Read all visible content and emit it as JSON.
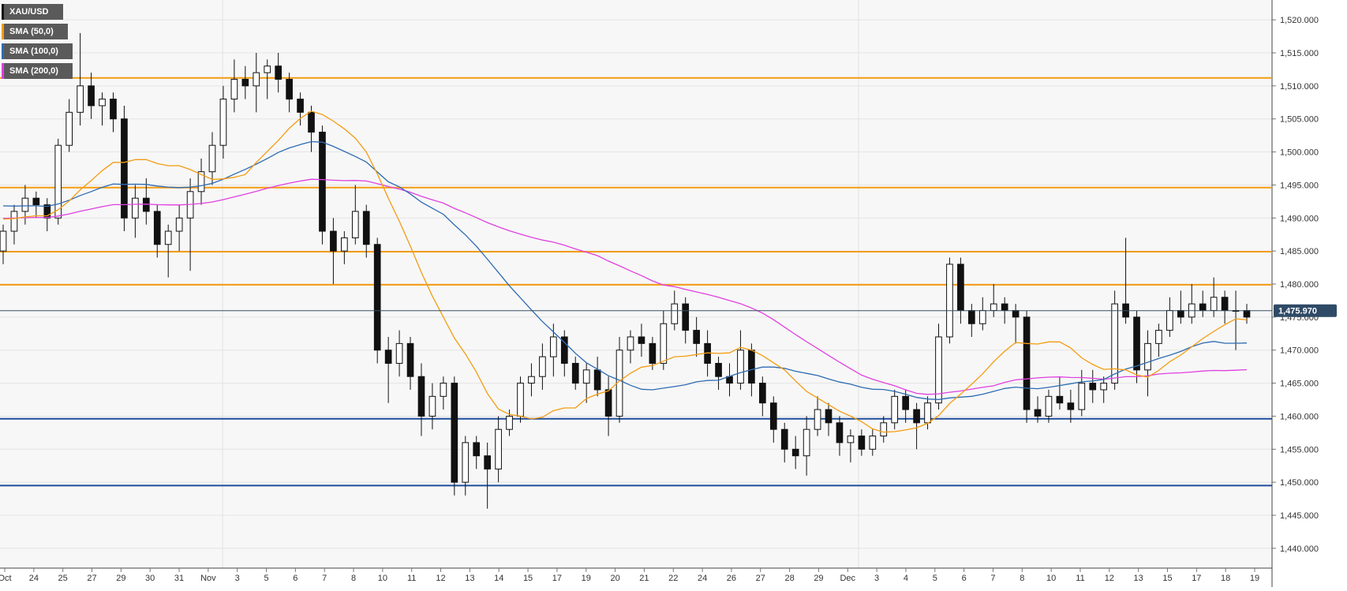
{
  "chart_data": {
    "type": "candlestick",
    "symbol": "XAU/USD",
    "legend": [
      {
        "name": "XAU/USD",
        "color": "#000000"
      },
      {
        "name": "SMA (50,0)",
        "color": "#f39c12"
      },
      {
        "name": "SMA (100,0)",
        "color": "#2e6bb2"
      },
      {
        "name": "SMA (200,0)",
        "color": "#e040e0"
      }
    ],
    "ylim": [
      1437,
      1523
    ],
    "y_ticks": [
      "1,440.000",
      "1,445.000",
      "1,450.000",
      "1,455.000",
      "1,460.000",
      "1,465.000",
      "1,470.000",
      "1,475.000",
      "1,480.000",
      "1,485.000",
      "1,490.000",
      "1,495.000",
      "1,500.000",
      "1,505.000",
      "1,510.000",
      "1,515.000",
      "1,520.000"
    ],
    "y_tick_values": [
      1440,
      1445,
      1450,
      1455,
      1460,
      1465,
      1470,
      1475,
      1480,
      1485,
      1490,
      1495,
      1500,
      1505,
      1510,
      1515,
      1520
    ],
    "x_labels": [
      "Oct",
      "24",
      "25",
      "27",
      "29",
      "30",
      "31",
      "Nov",
      "3",
      "5",
      "6",
      "7",
      "8",
      "10",
      "11",
      "12",
      "13",
      "14",
      "15",
      "17",
      "19",
      "20",
      "21",
      "22",
      "24",
      "26",
      "27",
      "28",
      "29",
      "Dec",
      "3",
      "4",
      "5",
      "6",
      "7",
      "8",
      "10",
      "11",
      "12",
      "13",
      "15",
      "17",
      "18",
      "19"
    ],
    "last_price": "1,475.970",
    "last_price_value": 1475.97,
    "resistance_levels": [
      1511.2,
      1494.6,
      1484.9,
      1479.9
    ],
    "support_levels": [
      1459.6,
      1449.5
    ],
    "resistance_color": "#f39c12",
    "support_color": "#1f4e9c",
    "candles": [
      [
        1485,
        1489,
        1483,
        1488
      ],
      [
        1488,
        1492,
        1486,
        1491
      ],
      [
        1491,
        1495,
        1489,
        1493
      ],
      [
        1493,
        1494,
        1490,
        1492
      ],
      [
        1492,
        1493,
        1488,
        1490
      ],
      [
        1490,
        1502,
        1489,
        1501
      ],
      [
        1501,
        1508,
        1500,
        1506
      ],
      [
        1506,
        1518,
        1504,
        1510
      ],
      [
        1510,
        1512,
        1505,
        1507
      ],
      [
        1507,
        1509,
        1504,
        1508
      ],
      [
        1508,
        1509,
        1503,
        1505
      ],
      [
        1505,
        1507,
        1488,
        1490
      ],
      [
        1490,
        1495,
        1487,
        1493
      ],
      [
        1493,
        1496,
        1489,
        1491
      ],
      [
        1491,
        1492,
        1484,
        1486
      ],
      [
        1486,
        1489,
        1481,
        1488
      ],
      [
        1488,
        1492,
        1485,
        1490
      ],
      [
        1490,
        1496,
        1482,
        1494
      ],
      [
        1494,
        1499,
        1492,
        1497
      ],
      [
        1497,
        1503,
        1495,
        1501
      ],
      [
        1501,
        1510,
        1499,
        1508
      ],
      [
        1508,
        1514,
        1506,
        1511
      ],
      [
        1511,
        1513,
        1508,
        1510
      ],
      [
        1510,
        1515,
        1506,
        1512
      ],
      [
        1512,
        1514,
        1508,
        1513
      ],
      [
        1513,
        1515,
        1509,
        1511
      ],
      [
        1511,
        1512,
        1506,
        1508
      ],
      [
        1508,
        1509,
        1504,
        1506
      ],
      [
        1506,
        1507,
        1500,
        1503
      ],
      [
        1503,
        1504,
        1486,
        1488
      ],
      [
        1488,
        1490,
        1480,
        1485
      ],
      [
        1485,
        1488,
        1483,
        1487
      ],
      [
        1487,
        1495,
        1486,
        1491
      ],
      [
        1491,
        1492,
        1484,
        1486
      ],
      [
        1486,
        1487,
        1468,
        1470
      ],
      [
        1470,
        1472,
        1462,
        1468
      ],
      [
        1468,
        1473,
        1466,
        1471
      ],
      [
        1471,
        1472,
        1464,
        1466
      ],
      [
        1466,
        1468,
        1457,
        1460
      ],
      [
        1460,
        1465,
        1458,
        1463
      ],
      [
        1463,
        1466,
        1461,
        1465
      ],
      [
        1465,
        1466,
        1448,
        1450
      ],
      [
        1450,
        1457,
        1448,
        1456
      ],
      [
        1456,
        1457,
        1452,
        1454
      ],
      [
        1454,
        1456,
        1446,
        1452
      ],
      [
        1452,
        1460,
        1450,
        1458
      ],
      [
        1458,
        1461,
        1457,
        1460
      ],
      [
        1460,
        1466,
        1459,
        1465
      ],
      [
        1465,
        1468,
        1463,
        1466
      ],
      [
        1466,
        1471,
        1464,
        1469
      ],
      [
        1469,
        1474,
        1466,
        1472
      ],
      [
        1472,
        1473,
        1466,
        1468
      ],
      [
        1468,
        1469,
        1464,
        1465
      ],
      [
        1465,
        1468,
        1462,
        1467
      ],
      [
        1467,
        1469,
        1463,
        1464
      ],
      [
        1464,
        1466,
        1457,
        1460
      ],
      [
        1460,
        1472,
        1459,
        1470
      ],
      [
        1470,
        1473,
        1468,
        1472
      ],
      [
        1472,
        1474,
        1469,
        1471
      ],
      [
        1471,
        1472,
        1467,
        1468
      ],
      [
        1468,
        1476,
        1467,
        1474
      ],
      [
        1474,
        1479,
        1473,
        1477
      ],
      [
        1477,
        1478,
        1471,
        1473
      ],
      [
        1473,
        1475,
        1469,
        1471
      ],
      [
        1471,
        1473,
        1466,
        1468
      ],
      [
        1468,
        1469,
        1464,
        1466
      ],
      [
        1466,
        1468,
        1463,
        1465
      ],
      [
        1465,
        1473,
        1464,
        1470
      ],
      [
        1470,
        1471,
        1463,
        1465
      ],
      [
        1465,
        1466,
        1460,
        1462
      ],
      [
        1462,
        1463,
        1456,
        1458
      ],
      [
        1458,
        1459,
        1453,
        1455
      ],
      [
        1455,
        1457,
        1452,
        1454
      ],
      [
        1454,
        1460,
        1451,
        1458
      ],
      [
        1458,
        1463,
        1457,
        1461
      ],
      [
        1461,
        1462,
        1457,
        1459
      ],
      [
        1459,
        1460,
        1454,
        1456
      ],
      [
        1456,
        1458,
        1453,
        1457
      ],
      [
        1457,
        1458,
        1454,
        1455
      ],
      [
        1455,
        1458,
        1454,
        1457
      ],
      [
        1457,
        1460,
        1456,
        1459
      ],
      [
        1459,
        1464,
        1458,
        1463
      ],
      [
        1463,
        1464,
        1459,
        1461
      ],
      [
        1461,
        1462,
        1455,
        1459
      ],
      [
        1459,
        1463,
        1458,
        1462
      ],
      [
        1462,
        1474,
        1461,
        1472
      ],
      [
        1472,
        1484,
        1471,
        1483
      ],
      [
        1483,
        1484,
        1474,
        1476
      ],
      [
        1476,
        1477,
        1472,
        1474
      ],
      [
        1474,
        1478,
        1473,
        1476
      ],
      [
        1476,
        1480,
        1475,
        1477
      ],
      [
        1477,
        1478,
        1474,
        1476
      ],
      [
        1476,
        1477,
        1471,
        1475
      ],
      [
        1475,
        1476,
        1459,
        1461
      ],
      [
        1461,
        1463,
        1459,
        1460
      ],
      [
        1460,
        1464,
        1459,
        1463
      ],
      [
        1463,
        1466,
        1461,
        1462
      ],
      [
        1462,
        1464,
        1459,
        1461
      ],
      [
        1461,
        1467,
        1460,
        1465
      ],
      [
        1465,
        1467,
        1462,
        1464
      ],
      [
        1464,
        1466,
        1462,
        1465
      ],
      [
        1465,
        1479,
        1464,
        1477
      ],
      [
        1477,
        1487,
        1474,
        1475
      ],
      [
        1475,
        1476,
        1465,
        1467
      ],
      [
        1467,
        1473,
        1463,
        1471
      ],
      [
        1471,
        1474,
        1469,
        1473
      ],
      [
        1473,
        1478,
        1472,
        1476
      ],
      [
        1476,
        1479,
        1474,
        1475
      ],
      [
        1475,
        1480,
        1474,
        1477
      ],
      [
        1477,
        1479,
        1475,
        1476
      ],
      [
        1476,
        1481,
        1475,
        1478
      ],
      [
        1478,
        1479,
        1474,
        1476
      ],
      [
        1476,
        1479,
        1470,
        1476
      ],
      [
        1476,
        1477,
        1474,
        1475
      ]
    ]
  }
}
